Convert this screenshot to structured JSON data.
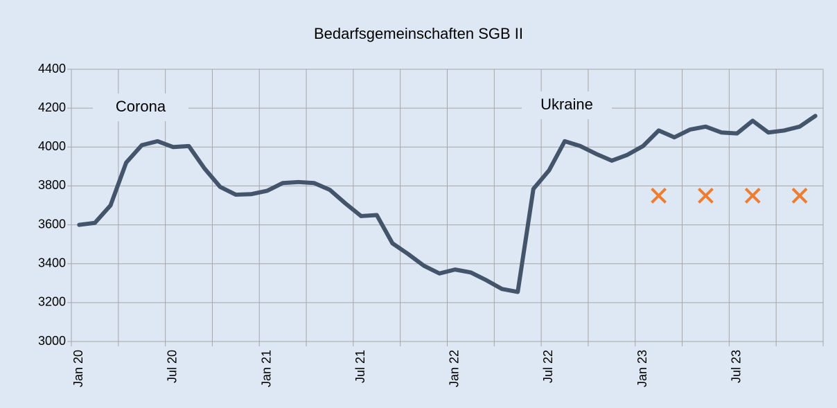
{
  "chart_data": {
    "type": "line",
    "title": "Bedarfsgemeinschaften SGB II",
    "categories": [
      "Jan 20",
      null,
      null,
      null,
      null,
      null,
      "Jul 20",
      null,
      null,
      null,
      null,
      null,
      "Jan 21",
      null,
      null,
      null,
      null,
      null,
      "Jul 21",
      null,
      null,
      null,
      null,
      null,
      "Jan 22",
      null,
      null,
      null,
      null,
      null,
      "Jul 22",
      null,
      null,
      null,
      null,
      null,
      "Jan 23",
      null,
      null,
      null,
      null,
      null,
      "Jul 23",
      null,
      null,
      null,
      null,
      null
    ],
    "series": [
      {
        "color": "#44546a",
        "values": [
          3600,
          3610,
          3700,
          3920,
          4010,
          4030,
          4000,
          4005,
          3890,
          3795,
          3755,
          3758,
          3775,
          3815,
          3820,
          3815,
          3780,
          3710,
          3645,
          3650,
          3505,
          3450,
          3390,
          3350,
          3370,
          3355,
          3315,
          3270,
          3255,
          3785,
          3880,
          4030,
          4005,
          3965,
          3930,
          3960,
          4005,
          4085,
          4050,
          4090,
          4105,
          4075,
          4070,
          4135,
          4075,
          4085,
          4105,
          4160
        ]
      },
      {
        "color": "#ed7d31",
        "marker": "x",
        "values": [
          null,
          null,
          null,
          null,
          null,
          null,
          null,
          null,
          null,
          null,
          null,
          null,
          null,
          null,
          null,
          null,
          null,
          null,
          null,
          null,
          null,
          null,
          null,
          null,
          null,
          null,
          null,
          null,
          null,
          null,
          null,
          null,
          null,
          null,
          null,
          null,
          null,
          3750,
          null,
          null,
          3750,
          null,
          null,
          3750,
          null,
          null,
          3750,
          null
        ]
      }
    ],
    "ylim": [
      3000,
      4400
    ],
    "yticks": [
      3000,
      3200,
      3400,
      3600,
      3800,
      4000,
      4200,
      4400
    ],
    "grid": true,
    "annotations": [
      "Corona",
      "Ukraine"
    ]
  }
}
